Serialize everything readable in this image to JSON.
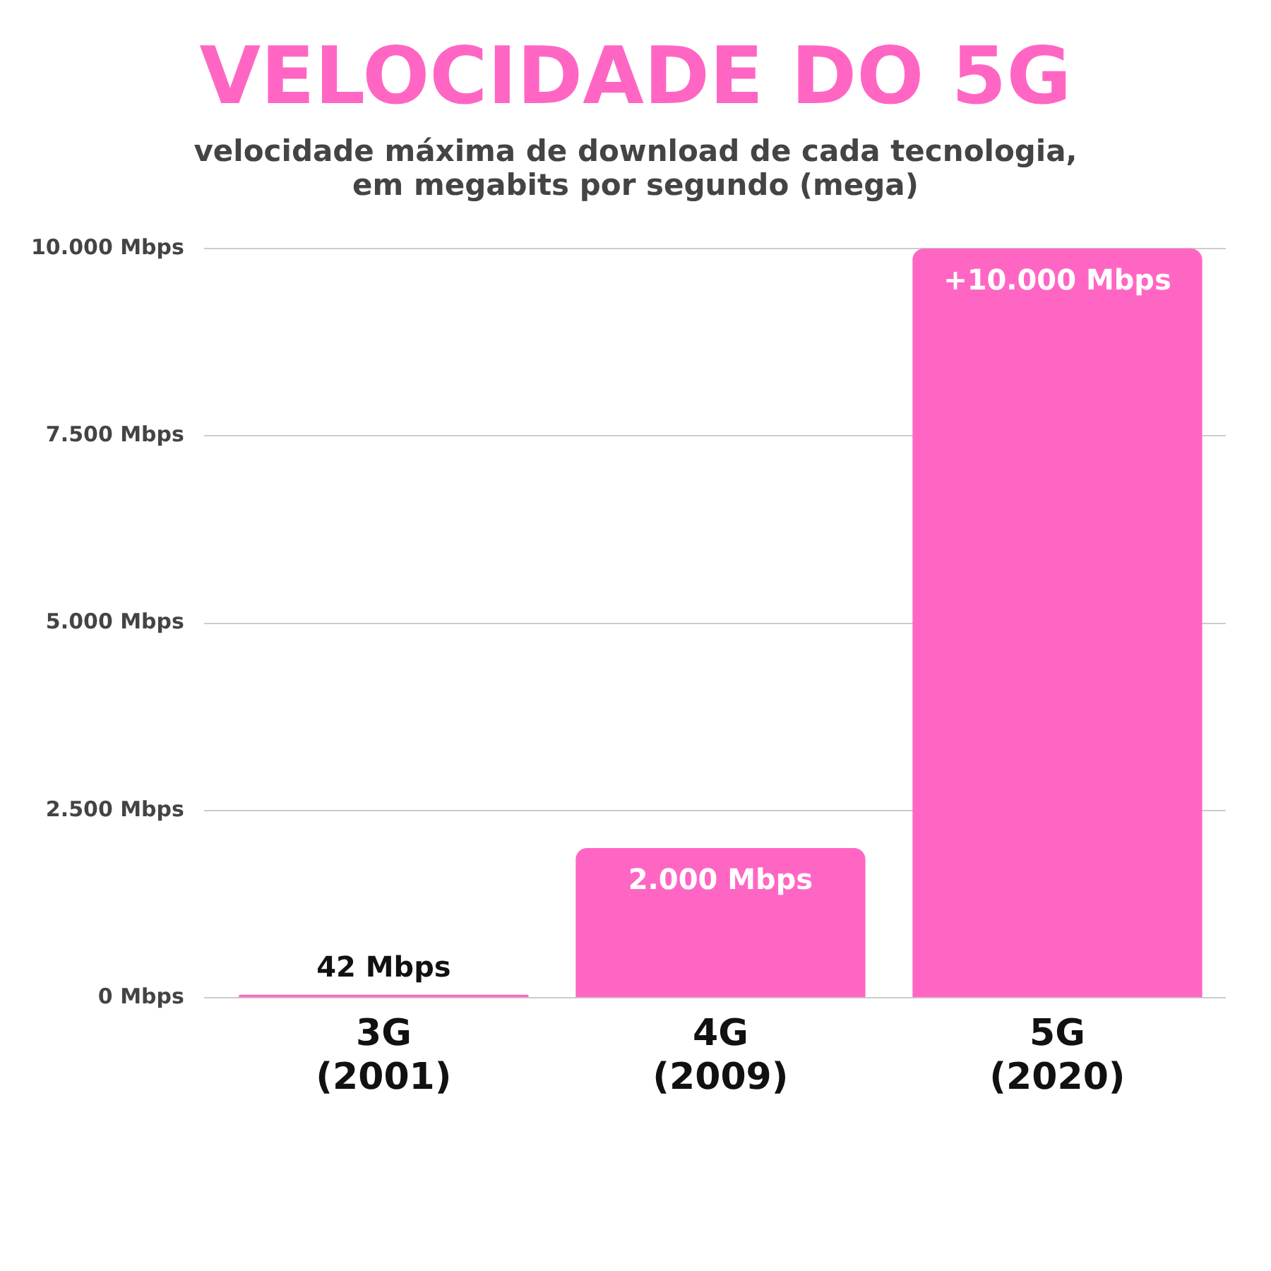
{
  "chart_data": {
    "type": "bar",
    "title": "VELOCIDADE DO 5G",
    "subtitle": "velocidade máxima de download de cada tecnologia, em megabits por segundo (mega)",
    "categories": [
      "3G (2001)",
      "4G (2009)",
      "5G (2020)"
    ],
    "values": [
      42,
      2000,
      10000
    ],
    "value_labels": [
      "42 Mbps",
      "2.000 Mbps",
      "+10.000 Mbps"
    ],
    "color": "#ff66c4",
    "ylim": [
      0,
      10000
    ],
    "yticks": [
      {
        "value": 0,
        "label": "0 Mbps"
      },
      {
        "value": 2500,
        "label": "2.500 Mbps"
      },
      {
        "value": 5000,
        "label": "5.000 Mbps"
      },
      {
        "value": 7500,
        "label": "7.500 Mbps"
      },
      {
        "value": 10000,
        "label": "10.000 Mbps"
      }
    ],
    "grid": "y",
    "legend": false
  }
}
